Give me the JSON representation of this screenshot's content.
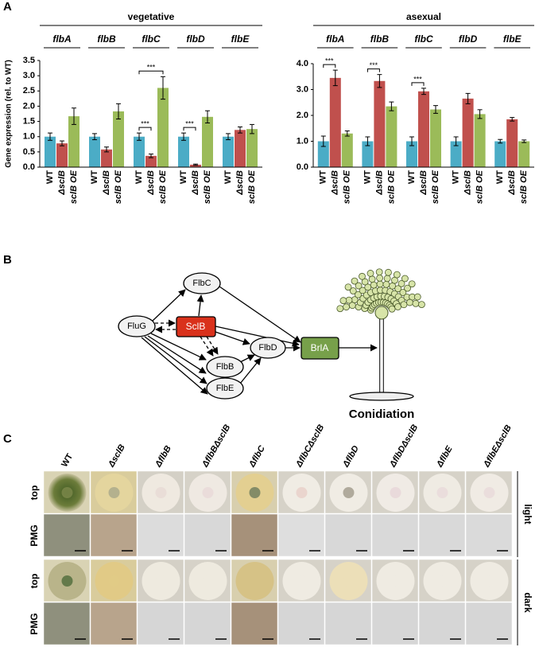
{
  "panels": [
    "A",
    "B",
    "C"
  ],
  "chart_data": [
    {
      "type": "bar",
      "title": "vegetative",
      "y_label": "Gene expression (rel. to WT)",
      "categories": [
        "flbA",
        "flbB",
        "flbC",
        "flbD",
        "flbE"
      ],
      "series": [
        {
          "name": "WT",
          "color": "#4bacc6",
          "values": [
            1.0,
            1.0,
            1.0,
            1.0,
            1.0
          ],
          "errors": [
            0.12,
            0.1,
            0.12,
            0.12,
            0.1
          ]
        },
        {
          "name": "ΔsclB",
          "color": "#c0504d",
          "values": [
            0.78,
            0.58,
            0.37,
            0.08,
            1.22
          ],
          "errors": [
            0.08,
            0.08,
            0.06,
            0.02,
            0.1
          ]
        },
        {
          "name": "sclB OE",
          "color": "#9bbb59",
          "values": [
            1.67,
            1.83,
            2.6,
            1.65,
            1.25
          ],
          "errors": [
            0.27,
            0.25,
            0.37,
            0.2,
            0.15
          ]
        }
      ],
      "ylim": [
        0,
        3.5
      ],
      "yticks": [
        {
          "value": 0,
          "label": "0.0"
        },
        0.5,
        {
          "value": 1,
          "label": "1.0"
        },
        1.5,
        {
          "value": 2,
          "label": "2.0"
        },
        2.5,
        {
          "value": 3,
          "label": "3.0"
        },
        3.5
      ],
      "annotations": [
        {
          "text": "***",
          "category": "flbC",
          "between": [
            "WT",
            "sclB OE"
          ]
        },
        {
          "text": "***",
          "category": "flbC",
          "between": [
            "WT",
            "ΔsclB"
          ]
        },
        {
          "text": "***",
          "category": "flbD",
          "between": [
            "WT",
            "ΔsclB"
          ]
        }
      ]
    },
    {
      "type": "bar",
      "title": "asexual",
      "categories": [
        "flbA",
        "flbB",
        "flbC",
        "flbD",
        "flbE"
      ],
      "series": [
        {
          "name": "WT",
          "color": "#4bacc6",
          "values": [
            1.0,
            1.0,
            1.0,
            1.0,
            1.0
          ],
          "errors": [
            0.2,
            0.17,
            0.17,
            0.17,
            0.07
          ]
        },
        {
          "name": "ΔsclB",
          "color": "#c0504d",
          "values": [
            3.45,
            3.33,
            2.93,
            2.65,
            1.85
          ],
          "errors": [
            0.3,
            0.25,
            0.12,
            0.2,
            0.07
          ]
        },
        {
          "name": "sclB OE",
          "color": "#9bbb59",
          "values": [
            1.3,
            2.35,
            2.23,
            2.05,
            1.0
          ],
          "errors": [
            0.1,
            0.17,
            0.15,
            0.17,
            0.05
          ]
        }
      ],
      "ylim": [
        0,
        4
      ],
      "yticks": [
        {
          "value": 0,
          "label": "0.0"
        },
        {
          "value": 1,
          "label": "1.0"
        },
        {
          "value": 2,
          "label": "2.0"
        },
        {
          "value": 3,
          "label": "3.0"
        },
        {
          "value": 4,
          "label": "4.0"
        }
      ],
      "annotations": [
        {
          "text": "***",
          "category": "flbA",
          "between": [
            "WT",
            "ΔsclB"
          ]
        },
        {
          "text": "***",
          "category": "flbB",
          "between": [
            "WT",
            "ΔsclB"
          ]
        },
        {
          "text": "***",
          "category": "flbC",
          "between": [
            "WT",
            "ΔsclB"
          ]
        }
      ]
    }
  ],
  "diagram": {
    "nodes": [
      "FluG",
      "FlbC",
      "SclB",
      "FlbB",
      "FlbE",
      "FlbD",
      "BrlA"
    ],
    "caption": "Conidiation"
  },
  "photo_panel": {
    "columns": [
      "WT",
      "ΔsclB",
      "ΔflbB",
      "ΔflbBΔsclB",
      "ΔflbC",
      "ΔflbCΔsclB",
      "ΔflbD",
      "ΔflbDΔsclB",
      "ΔflbE",
      "ΔflbEΔsclB"
    ],
    "rows": [
      "top",
      "PMG",
      "top",
      "PMG"
    ],
    "conditions": [
      "light",
      "dark"
    ]
  }
}
